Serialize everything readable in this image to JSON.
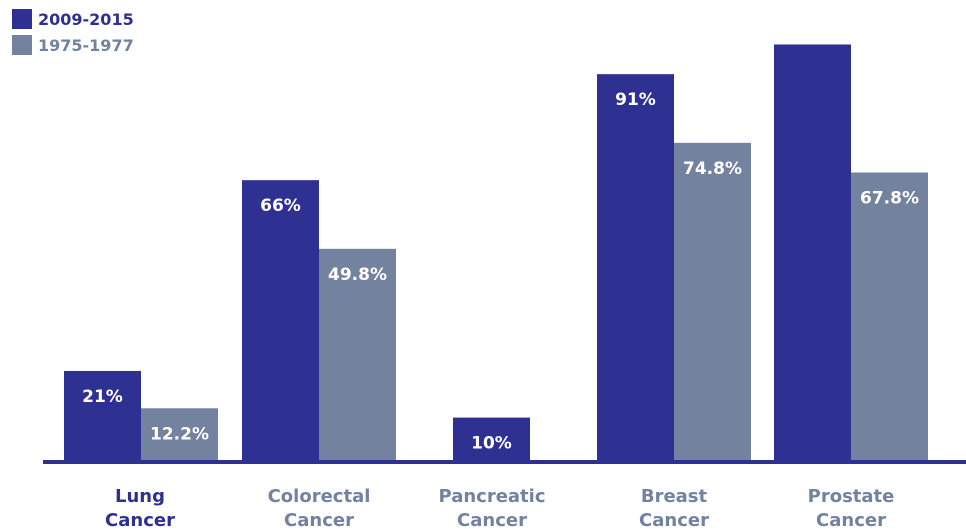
{
  "colors": {
    "recent": "#2e3191",
    "past": "#72829f",
    "baseline": "#2e3191",
    "text": "#ffffff"
  },
  "legend": [
    {
      "label": "2009-2015"
    },
    {
      "label": "1975-1977"
    }
  ],
  "chart_data": {
    "type": "bar",
    "categories": [
      "Lung\nCancer",
      "Colorectal\nCancer",
      "Pancreatic\nCancer",
      "Breast\nCancer",
      "Prostate\nCancer"
    ],
    "series": [
      {
        "name": "2009-2015",
        "values": [
          21,
          66,
          10,
          91,
          98
        ],
        "labels": [
          "21%",
          "66%",
          "10%",
          "91%",
          ""
        ]
      },
      {
        "name": "1975-1977",
        "values": [
          12.2,
          49.8,
          null,
          74.8,
          67.8
        ],
        "labels": [
          "12.2%",
          "49.8%",
          "",
          "74.8%",
          "67.8%"
        ]
      }
    ],
    "ylim": [
      0,
      100
    ],
    "legend_position": "top-left",
    "grid": false
  }
}
